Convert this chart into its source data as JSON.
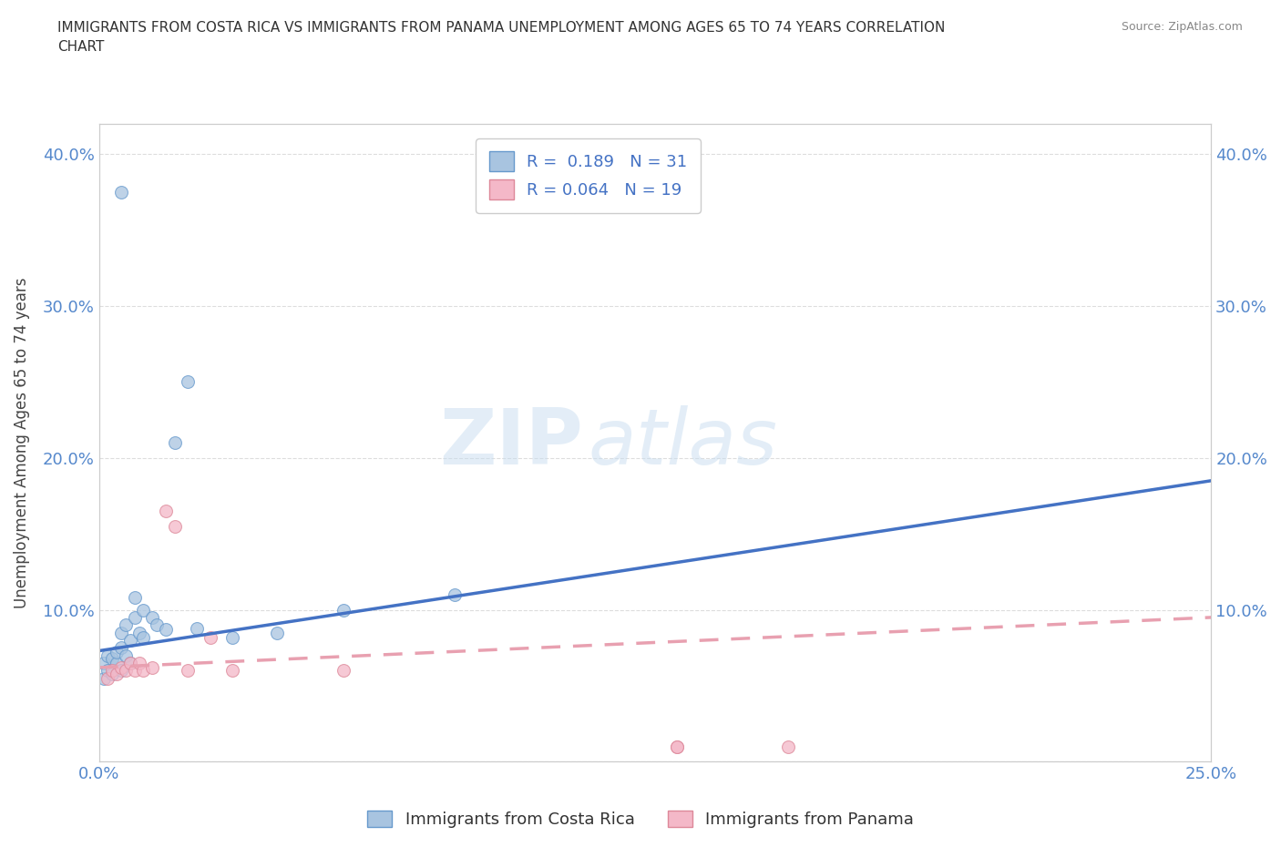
{
  "title": "IMMIGRANTS FROM COSTA RICA VS IMMIGRANTS FROM PANAMA UNEMPLOYMENT AMONG AGES 65 TO 74 YEARS CORRELATION\nCHART",
  "source": "Source: ZipAtlas.com",
  "ylabel": "Unemployment Among Ages 65 to 74 years",
  "xlim": [
    0.0,
    0.25
  ],
  "ylim": [
    0.0,
    0.42
  ],
  "xticks": [
    0.0,
    0.05,
    0.1,
    0.15,
    0.2,
    0.25
  ],
  "yticks": [
    0.0,
    0.1,
    0.2,
    0.3,
    0.4
  ],
  "ytick_labels": [
    "",
    "10.0%",
    "20.0%",
    "30.0%",
    "40.0%"
  ],
  "xtick_labels": [
    "0.0%",
    "",
    "",
    "",
    "",
    "25.0%"
  ],
  "costa_rica_x": [
    0.001,
    0.001,
    0.002,
    0.002,
    0.003,
    0.003,
    0.004,
    0.004,
    0.005,
    0.005,
    0.005,
    0.006,
    0.006,
    0.007,
    0.007,
    0.008,
    0.008,
    0.009,
    0.01,
    0.01,
    0.012,
    0.013,
    0.015,
    0.017,
    0.02,
    0.022,
    0.03,
    0.04,
    0.055,
    0.08,
    0.005
  ],
  "costa_rica_y": [
    0.055,
    0.065,
    0.06,
    0.07,
    0.058,
    0.068,
    0.065,
    0.072,
    0.06,
    0.075,
    0.085,
    0.07,
    0.09,
    0.065,
    0.08,
    0.095,
    0.108,
    0.085,
    0.1,
    0.082,
    0.095,
    0.09,
    0.087,
    0.21,
    0.25,
    0.088,
    0.082,
    0.085,
    0.1,
    0.11,
    0.375
  ],
  "panama_x": [
    0.002,
    0.003,
    0.004,
    0.005,
    0.006,
    0.007,
    0.008,
    0.009,
    0.01,
    0.012,
    0.015,
    0.017,
    0.02,
    0.025,
    0.03,
    0.055,
    0.13,
    0.155,
    0.13
  ],
  "panama_y": [
    0.055,
    0.06,
    0.058,
    0.062,
    0.06,
    0.065,
    0.06,
    0.065,
    0.06,
    0.062,
    0.165,
    0.155,
    0.06,
    0.082,
    0.06,
    0.06,
    0.01,
    0.01,
    0.01
  ],
  "costa_rica_color": "#a8c4e0",
  "costa_rica_edge": "#6699cc",
  "panama_color": "#f4b8c8",
  "panama_edge": "#dd8899",
  "costa_rica_line_color": "#4472C4",
  "panama_line_color": "#e8a0b0",
  "R_cr": 0.189,
  "N_cr": 31,
  "R_pan": 0.064,
  "N_pan": 19,
  "cr_line_x0": 0.0,
  "cr_line_y0": 0.073,
  "cr_line_x1": 0.25,
  "cr_line_y1": 0.185,
  "pan_line_x0": 0.0,
  "pan_line_y0": 0.062,
  "pan_line_x1": 0.25,
  "pan_line_y1": 0.095,
  "watermark_zip": "ZIP",
  "watermark_atlas": "atlas",
  "background_color": "#ffffff",
  "grid_color": "#dddddd"
}
